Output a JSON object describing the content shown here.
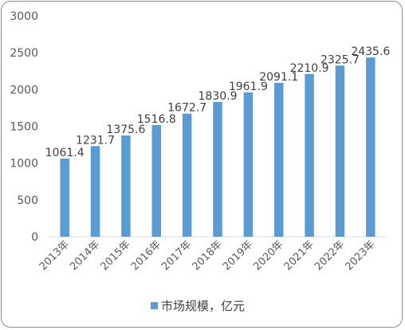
{
  "chart_data": {
    "type": "bar",
    "categories": [
      "2013年",
      "2014年",
      "2015年",
      "2016年",
      "2017年",
      "2018年",
      "2019年",
      "2020年",
      "2021年",
      "2022年",
      "2023年"
    ],
    "series": [
      {
        "name": "市场规模，亿元",
        "values": [
          1061.4,
          1231.7,
          1375.6,
          1516.8,
          1672.7,
          1830.9,
          1961.9,
          2091.1,
          2210.9,
          2325.7,
          2435.6
        ],
        "labels": [
          "1061.4",
          "1231.7",
          "1375.6",
          "1516.8",
          "1672.7",
          "1830.9",
          "1961.9",
          "2091.1",
          "2210.9",
          "2325.7",
          "2435.6"
        ]
      }
    ],
    "yticks": [
      "0",
      "500",
      "1000",
      "1500",
      "2000",
      "2500",
      "3000"
    ],
    "ylim": [
      0,
      3000
    ],
    "grid": false,
    "legend_position": "bottom",
    "bar_color": "#5b9bd5"
  }
}
